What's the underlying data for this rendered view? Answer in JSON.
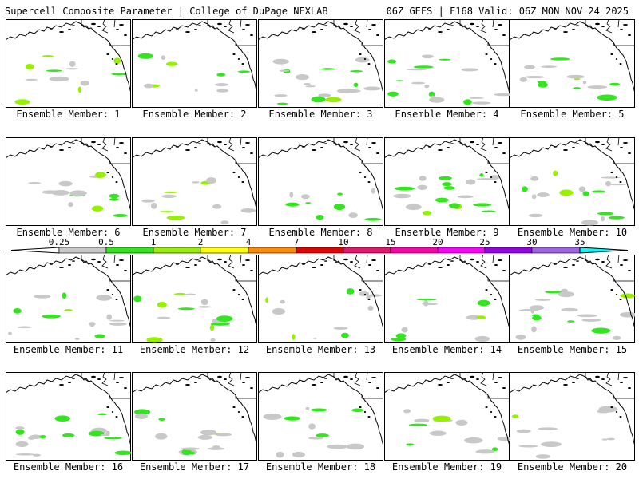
{
  "header": {
    "left": "Supercell Composite Parameter | College of DuPage NEXLAB",
    "right": "06Z GEFS | F168 Valid: 06Z MON NOV 24 2025"
  },
  "legend": {
    "ticks": [
      "0.25",
      "0.5",
      "1",
      "2",
      "4",
      "7",
      "10",
      "15",
      "20",
      "25",
      "30",
      "35"
    ],
    "colors": [
      "#c8c8c8",
      "#32e61e",
      "#96f000",
      "#ffff00",
      "#ff8c00",
      "#e60000",
      "#e6156e",
      "#ff00aa",
      "#ff00ff",
      "#9600e6",
      "#a064e6",
      "#00ffff"
    ]
  },
  "panels": [
    {
      "label": "Ensemble Member: 1"
    },
    {
      "label": "Ensemble Member: 2"
    },
    {
      "label": "Ensemble Member: 3"
    },
    {
      "label": "Ensemble Member: 4"
    },
    {
      "label": "Ensemble Member: 5"
    },
    {
      "label": "Ensemble Member: 6"
    },
    {
      "label": "Ensemble Member: 7"
    },
    {
      "label": "Ensemble Member: 8"
    },
    {
      "label": "Ensemble Member: 9"
    },
    {
      "label": "Ensemble Member: 10"
    },
    {
      "label": "Ensemble Member: 11"
    },
    {
      "label": "Ensemble Member: 12"
    },
    {
      "label": "Ensemble Member: 13"
    },
    {
      "label": "Ensemble Member: 14"
    },
    {
      "label": "Ensemble Member: 15"
    },
    {
      "label": "Ensemble Member: 16"
    },
    {
      "label": "Ensemble Member: 17"
    },
    {
      "label": "Ensemble Member: 18"
    },
    {
      "label": "Ensemble Member: 19"
    },
    {
      "label": "Ensemble Member: 20"
    }
  ]
}
